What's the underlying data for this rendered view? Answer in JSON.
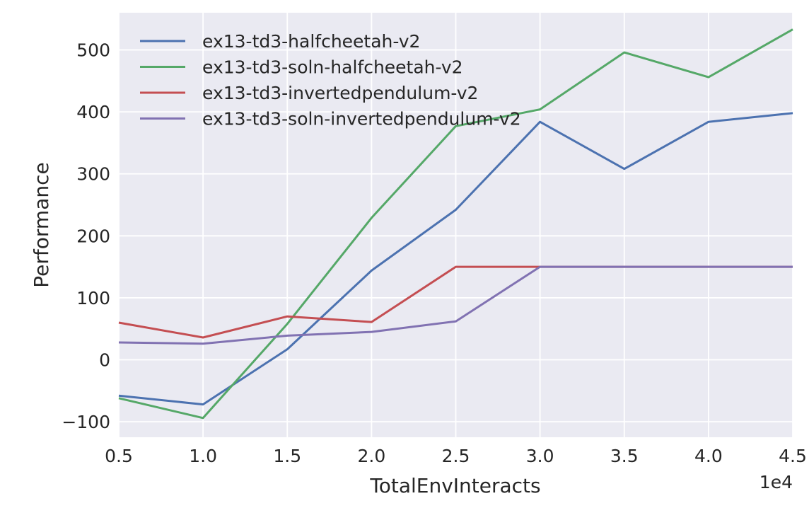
{
  "chart_data": {
    "type": "line",
    "title": "",
    "xlabel": "TotalEnvInteracts",
    "ylabel": "Performance",
    "x_offset_label": "1e4",
    "x": [
      0.5,
      1.0,
      1.5,
      2.0,
      2.5,
      3.0,
      3.5,
      4.0,
      4.5
    ],
    "xlim": [
      0.5,
      4.5
    ],
    "ylim": [
      -125,
      560
    ],
    "xticks": [
      0.5,
      1.0,
      1.5,
      2.0,
      2.5,
      3.0,
      3.5,
      4.0,
      4.5
    ],
    "xtick_labels": [
      "0.5",
      "1.0",
      "1.5",
      "2.0",
      "2.5",
      "3.0",
      "3.5",
      "4.0",
      "4.5"
    ],
    "yticks": [
      -100,
      0,
      100,
      200,
      300,
      400,
      500
    ],
    "ytick_labels": [
      "−100",
      "0",
      "100",
      "200",
      "300",
      "400",
      "500"
    ],
    "grid": true,
    "legend_position": "top-left",
    "series": [
      {
        "name": "ex13-td3-halfcheetah-v2",
        "color": "#4c72b0",
        "values": [
          -58,
          -72,
          17,
          144,
          242,
          384,
          308,
          384,
          398
        ]
      },
      {
        "name": "ex13-td3-soln-halfcheetah-v2",
        "color": "#55a868",
        "values": [
          -62,
          -94,
          58,
          229,
          377,
          404,
          496,
          456,
          533
        ]
      },
      {
        "name": "ex13-td3-invertedpendulum-v2",
        "color": "#c44e52",
        "values": [
          60,
          36,
          70,
          61,
          150,
          150,
          150,
          150,
          150
        ]
      },
      {
        "name": "ex13-td3-soln-invertedpendulum-v2",
        "color": "#8172b2",
        "values": [
          28,
          26,
          39,
          45,
          62,
          150,
          150,
          150,
          150
        ]
      }
    ]
  }
}
